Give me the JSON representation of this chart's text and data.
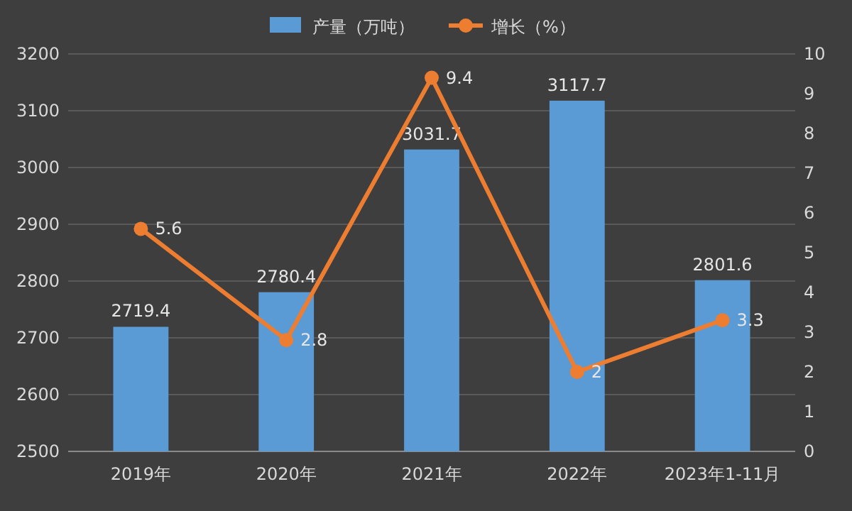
{
  "chart_data": {
    "type": "bar",
    "categories": [
      "2019年",
      "2020年",
      "2021年",
      "2022年",
      "2023年1-11月"
    ],
    "series": [
      {
        "name": "产量（万吨）",
        "color": "#5b9bd5",
        "values": [
          2719.4,
          2780.4,
          3031.7,
          3117.7,
          2801.6
        ]
      },
      {
        "name": "增长（%）",
        "type": "line",
        "axis": "y2",
        "color": "#ed7d31",
        "values": [
          5.6,
          2.8,
          9.4,
          2,
          3.3
        ],
        "marker": "circle"
      }
    ],
    "ylim": [
      2500,
      3200
    ],
    "yticks": [
      2500,
      2600,
      2700,
      2800,
      2900,
      3000,
      3100,
      3200
    ],
    "y2lim": [
      0,
      10
    ],
    "y2ticks": [
      0,
      1,
      2,
      3,
      4,
      5,
      6,
      7,
      8,
      9,
      10
    ],
    "data_labels": true,
    "grid": "y",
    "legend": "top"
  }
}
